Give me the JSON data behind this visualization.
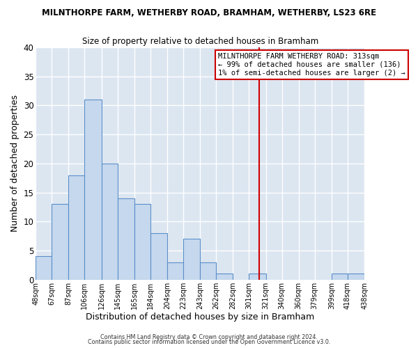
{
  "title": "MILNTHORPE FARM, WETHERBY ROAD, BRAMHAM, WETHERBY, LS23 6RE",
  "subtitle": "Size of property relative to detached houses in Bramham",
  "xlabel": "Distribution of detached houses by size in Bramham",
  "ylabel": "Number of detached properties",
  "bar_color": "#c5d8ee",
  "bar_edge_color": "#5b8fc9",
  "background_color": "#dce6f1",
  "grid_color": "#ffffff",
  "fig_background": "#ffffff",
  "bins": [
    48,
    67,
    87,
    106,
    126,
    145,
    165,
    184,
    204,
    223,
    243,
    262,
    282,
    301,
    321,
    340,
    360,
    379,
    399,
    418,
    438
  ],
  "counts": [
    4,
    13,
    18,
    31,
    20,
    14,
    13,
    8,
    3,
    7,
    3,
    1,
    0,
    1,
    0,
    0,
    0,
    0,
    1,
    1
  ],
  "xlim": [
    48,
    438
  ],
  "ylim": [
    0,
    40
  ],
  "yticks": [
    0,
    5,
    10,
    15,
    20,
    25,
    30,
    35,
    40
  ],
  "xtick_labels": [
    "48sqm",
    "67sqm",
    "87sqm",
    "106sqm",
    "126sqm",
    "145sqm",
    "165sqm",
    "184sqm",
    "204sqm",
    "223sqm",
    "243sqm",
    "262sqm",
    "282sqm",
    "301sqm",
    "321sqm",
    "340sqm",
    "360sqm",
    "379sqm",
    "399sqm",
    "418sqm",
    "438sqm"
  ],
  "property_line_x": 313,
  "property_line_color": "#cc0000",
  "annotation_title": "MILNTHORPE FARM WETHERBY ROAD: 313sqm",
  "annotation_line1": "← 99% of detached houses are smaller (136)",
  "annotation_line2": "1% of semi-detached houses are larger (2) →",
  "annotation_box_facecolor": "#ffffff",
  "annotation_box_edgecolor": "#cc0000",
  "footer1": "Contains HM Land Registry data © Crown copyright and database right 2024.",
  "footer2": "Contains public sector information licensed under the Open Government Licence v3.0."
}
